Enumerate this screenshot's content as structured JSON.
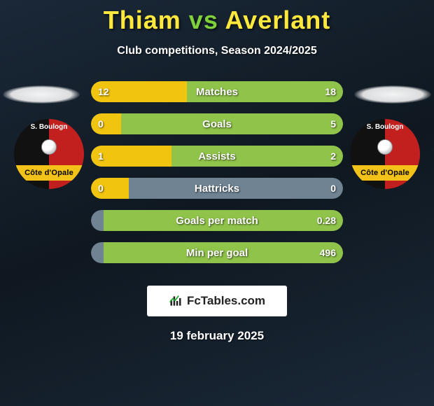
{
  "header": {
    "player1": "Thiam",
    "vs": "vs",
    "player2": "Averlant",
    "subtitle": "Club competitions, Season 2024/2025"
  },
  "badge": {
    "top_text": "S. Boulogn",
    "band_text": "Côte d'Opale",
    "colors": {
      "left_half": "#111111",
      "right_half": "#c21f1f",
      "band_bg": "#f2c218"
    }
  },
  "bars": {
    "track_color": "#6f8393",
    "left_fill_color": "#f1c40f",
    "right_fill_color": "#8fc34a",
    "rows": [
      {
        "label": "Matches",
        "left": "12",
        "right": "18",
        "left_pct": 38,
        "right_pct": 62
      },
      {
        "label": "Goals",
        "left": "0",
        "right": "5",
        "left_pct": 12,
        "right_pct": 88
      },
      {
        "label": "Assists",
        "left": "1",
        "right": "2",
        "left_pct": 32,
        "right_pct": 68
      },
      {
        "label": "Hattricks",
        "left": "0",
        "right": "0",
        "left_pct": 15,
        "right_pct": 0
      },
      {
        "label": "Goals per match",
        "left": "",
        "right": "0.28",
        "left_pct": 0,
        "right_pct": 95
      },
      {
        "label": "Min per goal",
        "left": "",
        "right": "496",
        "left_pct": 0,
        "right_pct": 95
      }
    ]
  },
  "footer": {
    "site": "FcTables.com",
    "date": "19 february 2025"
  }
}
